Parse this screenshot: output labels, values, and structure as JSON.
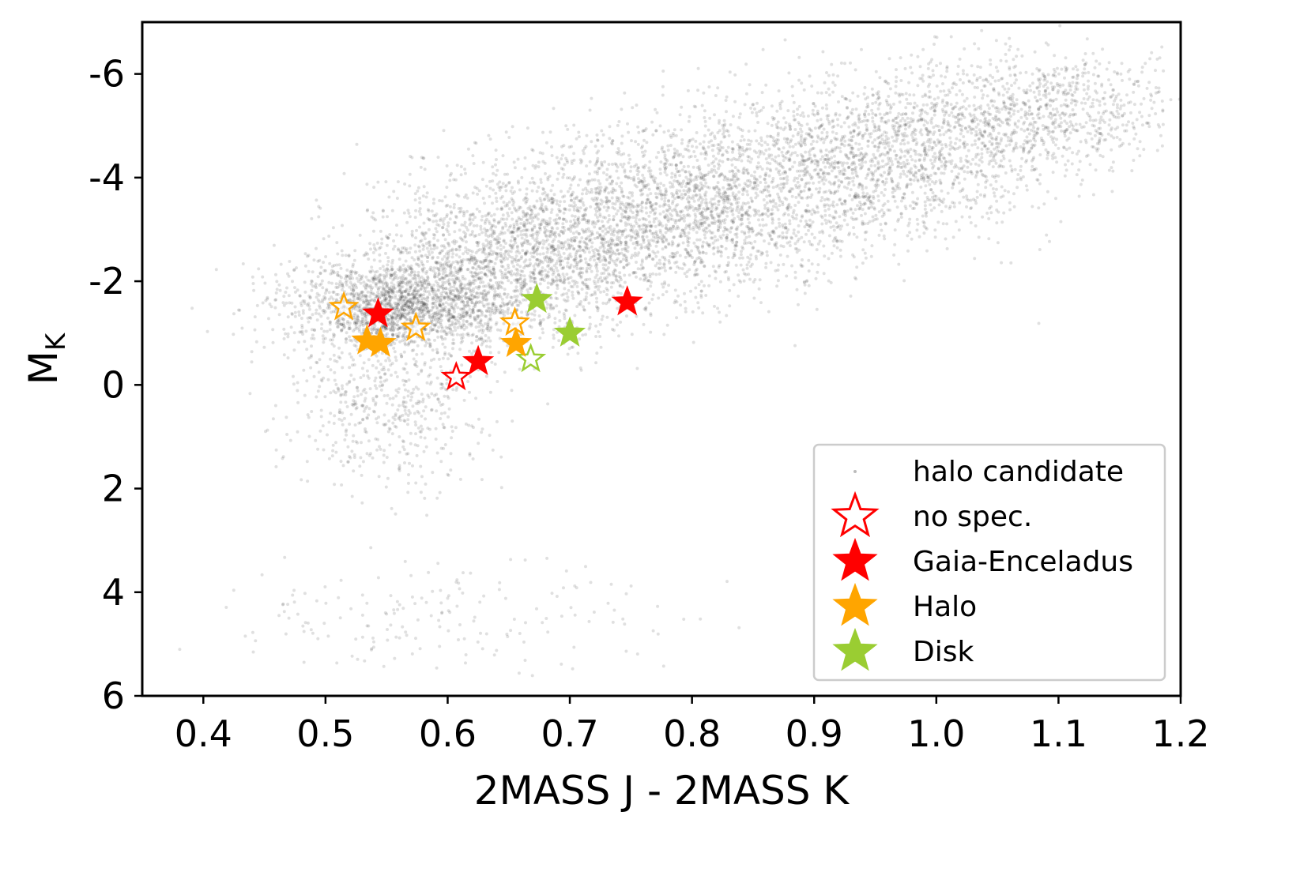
{
  "chart_data": {
    "type": "scatter",
    "xlabel": "2MASS J - 2MASS K",
    "ylabel_main": "M",
    "ylabel_sub": "K",
    "xlim": [
      0.35,
      1.2
    ],
    "ylim": [
      6,
      -7
    ],
    "y_inverted": true,
    "xticks": [
      0.4,
      0.5,
      0.6,
      0.7,
      0.8,
      0.9,
      1.0,
      1.1,
      1.2
    ],
    "xtick_labels": [
      "0.4",
      "0.5",
      "0.6",
      "0.7",
      "0.8",
      "0.9",
      "1.0",
      "1.1",
      "1.2"
    ],
    "yticks": [
      -6,
      -4,
      -2,
      0,
      2,
      4,
      6
    ],
    "ytick_labels": [
      "-6",
      "-4",
      "-2",
      "0",
      "2",
      "4",
      "6"
    ],
    "grid": false,
    "legend_position": "bottom-right",
    "colors": {
      "background_dots": "#000000",
      "gaia_enceladus": "#ff0000",
      "halo": "#ffa500",
      "disk": "#9acd32",
      "legend_border": "#cccccc"
    },
    "background_cloud": {
      "name": "halo candidate",
      "description_components": [
        {
          "x_mean": 0.56,
          "y_mean": -1.55,
          "x_sd": 0.045,
          "y_sd": 0.45,
          "weight": 0.2
        },
        {
          "x_mean": 0.66,
          "y_mean": -2.5,
          "x_sd": 0.06,
          "y_sd": 0.8,
          "weight": 0.22
        },
        {
          "x_mean": 0.8,
          "y_mean": -3.4,
          "x_sd": 0.07,
          "y_sd": 0.8,
          "weight": 0.22
        },
        {
          "x_mean": 0.95,
          "y_mean": -4.4,
          "x_sd": 0.07,
          "y_sd": 0.75,
          "weight": 0.18
        },
        {
          "x_mean": 1.08,
          "y_mean": -5.3,
          "x_sd": 0.06,
          "y_sd": 0.6,
          "weight": 0.1
        },
        {
          "x_mean": 0.55,
          "y_mean": 0.3,
          "x_sd": 0.04,
          "y_sd": 0.8,
          "weight": 0.06
        },
        {
          "x_mean": 0.6,
          "y_mean": 4.5,
          "x_sd": 0.1,
          "y_sd": 0.5,
          "weight": 0.02
        }
      ],
      "count": 9000
    },
    "series": [
      {
        "name": "no spec.",
        "marker": "star-open",
        "points": [
          {
            "x": 0.515,
            "y": -1.5,
            "color": "#ffa500"
          },
          {
            "x": 0.574,
            "y": -1.1,
            "color": "#ffa500"
          },
          {
            "x": 0.655,
            "y": -1.2,
            "color": "#ffa500"
          },
          {
            "x": 0.607,
            "y": -0.15,
            "color": "#ff0000"
          },
          {
            "x": 0.668,
            "y": -0.5,
            "color": "#9acd32"
          }
        ]
      },
      {
        "name": "Gaia-Enceladus",
        "marker": "star-filled",
        "color": "#ff0000",
        "points": [
          {
            "x": 0.543,
            "y": -1.37
          },
          {
            "x": 0.625,
            "y": -0.45
          },
          {
            "x": 0.747,
            "y": -1.6
          }
        ]
      },
      {
        "name": "Halo",
        "marker": "star-filled",
        "color": "#ffa500",
        "points": [
          {
            "x": 0.534,
            "y": -0.85
          },
          {
            "x": 0.545,
            "y": -0.8
          },
          {
            "x": 0.656,
            "y": -0.8
          }
        ]
      },
      {
        "name": "Disk",
        "marker": "star-filled",
        "color": "#9acd32",
        "points": [
          {
            "x": 0.673,
            "y": -1.65
          },
          {
            "x": 0.7,
            "y": -1.0
          }
        ]
      }
    ],
    "legend": [
      {
        "label": "halo candidate",
        "marker": "dot",
        "color": "#bbbbbb"
      },
      {
        "label": "no spec.",
        "marker": "star-open",
        "color": "#ff0000"
      },
      {
        "label": "Gaia-Enceladus",
        "marker": "star-filled",
        "color": "#ff0000"
      },
      {
        "label": "Halo",
        "marker": "star-filled",
        "color": "#ffa500"
      },
      {
        "label": "Disk",
        "marker": "star-filled",
        "color": "#9acd32"
      }
    ]
  }
}
